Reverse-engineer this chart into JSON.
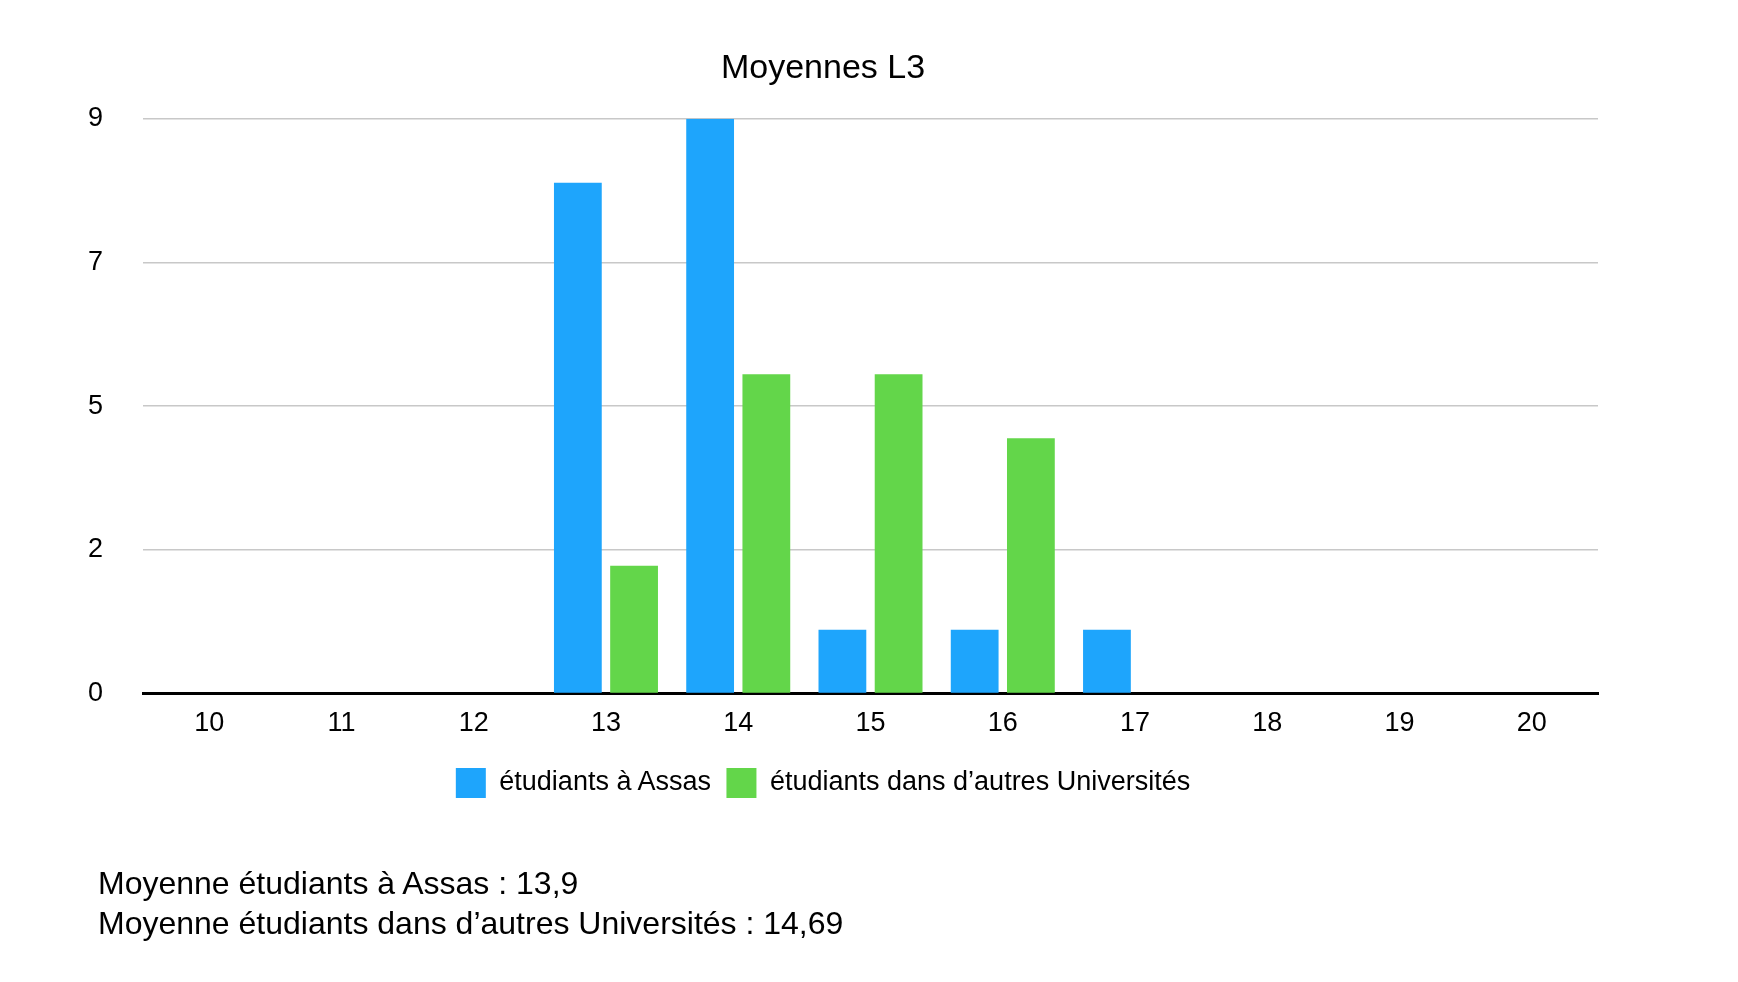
{
  "chart_data": {
    "type": "bar",
    "title": "Moyennes L3",
    "categories": [
      "10",
      "11",
      "12",
      "13",
      "14",
      "15",
      "16",
      "17",
      "18",
      "19",
      "20"
    ],
    "series": [
      {
        "name": "étudiants à Assas",
        "color": "#1ea5fc",
        "values": [
          0,
          0,
          0,
          8,
          9,
          1,
          1,
          1,
          0,
          0,
          0
        ]
      },
      {
        "name": "étudiants dans d’autres Universités",
        "color": "#63d64a",
        "values": [
          0,
          0,
          0,
          2,
          5,
          5,
          4,
          0,
          0,
          0,
          0
        ]
      }
    ],
    "ylim": [
      0,
      9
    ],
    "yticks": [
      0,
      {
        "value": 2.25,
        "label": "2"
      },
      {
        "value": 4.5,
        "label": "5"
      },
      {
        "value": 6.75,
        "label": "7"
      },
      9
    ],
    "grid": "y",
    "legend": "bottom",
    "annotations": [
      "Moyenne étudiants à Assas : 13,9",
      "Moyenne étudiants dans d’autres Universités : 14,69"
    ]
  }
}
